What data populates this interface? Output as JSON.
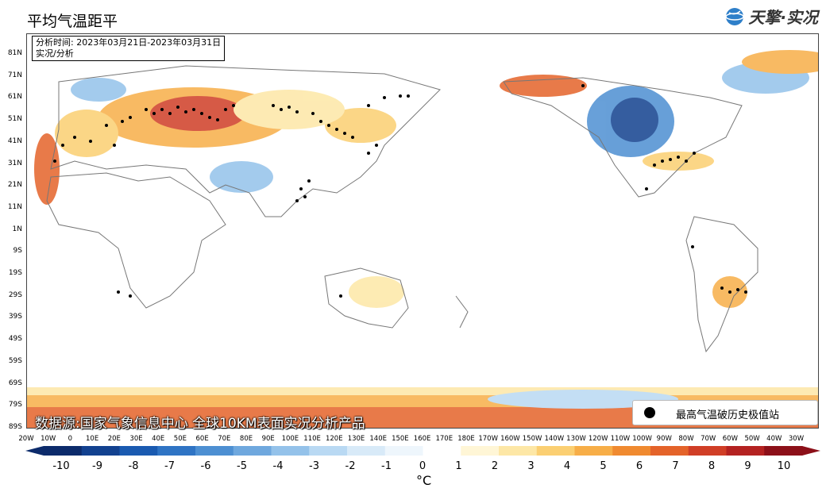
{
  "title": "平均气温距平",
  "brand": {
    "name": "天擎·实况"
  },
  "info": {
    "time_line": "分析时间: 2023年03月21日-2023年03月31日",
    "type_line": "实况/分析"
  },
  "source": "数据源:国家气象信息中心 全球10KM表面实况分析产品",
  "legend": {
    "marker_label": "最高气温破历史极值站"
  },
  "lat_labels": [
    "81N",
    "71N",
    "61N",
    "51N",
    "41N",
    "31N",
    "21N",
    "11N",
    "1N",
    "9S",
    "19S",
    "29S",
    "39S",
    "49S",
    "59S",
    "69S",
    "79S",
    "89S"
  ],
  "lon_labels": [
    "20W",
    "10W",
    "0",
    "10E",
    "20E",
    "30E",
    "40E",
    "50E",
    "60E",
    "70E",
    "80E",
    "90E",
    "100E",
    "110E",
    "120E",
    "130E",
    "140E",
    "150E",
    "160E",
    "170E",
    "180E",
    "170W",
    "160W",
    "150W",
    "140W",
    "130W",
    "120W",
    "110W",
    "100W",
    "90W",
    "80W",
    "70W",
    "60W",
    "50W",
    "40W",
    "30W"
  ],
  "colorbar": {
    "ticks": [
      "-10",
      "-9",
      "-8",
      "-7",
      "-6",
      "-5",
      "-4",
      "-3",
      "-2",
      "-1",
      "0",
      "1",
      "2",
      "3",
      "4",
      "5",
      "6",
      "7",
      "8",
      "9",
      "10"
    ],
    "unit": "°C",
    "colors": [
      "#0c2b6b",
      "#12418f",
      "#1a5ab0",
      "#2f74c4",
      "#4d8fd2",
      "#6fa8de",
      "#94c2ea",
      "#b9d9f3",
      "#d8eaf8",
      "#eef6fc",
      "#ffffff",
      "#fff6d6",
      "#fde7a6",
      "#fbcf72",
      "#f7ae48",
      "#f08a30",
      "#e4632a",
      "#d03e26",
      "#b42221",
      "#8c1019"
    ]
  },
  "map_colors": {
    "land_outline": "#777777",
    "warm": "#e4632a",
    "hot": "#b42221",
    "cold": "#1a5ab0",
    "cool": "#94c2ea",
    "station": "#000000"
  }
}
